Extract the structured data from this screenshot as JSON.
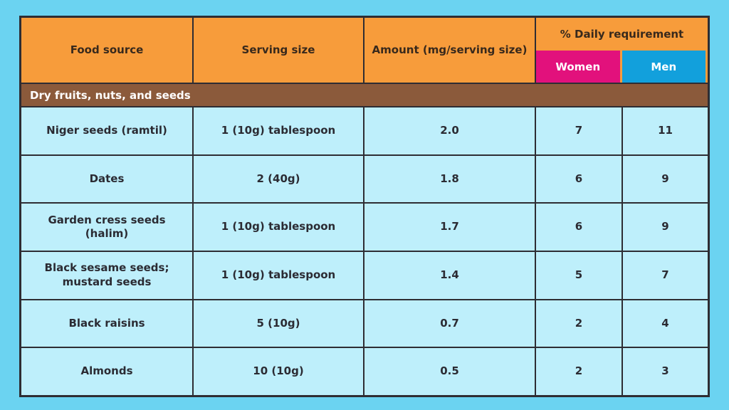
{
  "colors": {
    "page_background": "#6BD3F1",
    "header_orange": "#F79C3B",
    "women_magenta": "#E2117C",
    "men_blue": "#12A0DC",
    "section_brown": "#8B5A3B",
    "cell_light_blue": "#BEEFFB",
    "border_dark": "#2E2D33",
    "header_text": "#38291C",
    "body_text": "#2B2B33",
    "light_text": "#FFFFFF"
  },
  "table": {
    "headers": {
      "food_source": "Food source",
      "serving_size": "Serving size",
      "amount": "Amount (mg/serving size)",
      "daily_requirement": "% Daily requirement",
      "women": "Women",
      "men": "Men"
    },
    "section": "Dry fruits, nuts, and seeds",
    "rows": [
      {
        "food": "Niger seeds (ramtil)",
        "serving": "1 (10g) tablespoon",
        "amount": "2.0",
        "women": "7",
        "men": "11"
      },
      {
        "food": "Dates",
        "serving": "2 (40g)",
        "amount": "1.8",
        "women": "6",
        "men": "9"
      },
      {
        "food": "Garden cress seeds (halim)",
        "serving": "1 (10g) tablespoon",
        "amount": "1.7",
        "women": "6",
        "men": "9"
      },
      {
        "food": "Black sesame seeds; mustard seeds",
        "serving": "1 (10g) tablespoon",
        "amount": "1.4",
        "women": "5",
        "men": "7"
      },
      {
        "food": "Black raisins",
        "serving": "5 (10g)",
        "amount": "0.7",
        "women": "2",
        "men": "4"
      },
      {
        "food": "Almonds",
        "serving": "10 (10g)",
        "amount": "0.5",
        "women": "2",
        "men": "3"
      }
    ]
  },
  "chart_data": {
    "type": "table",
    "title": "",
    "columns": [
      "Food source",
      "Serving size",
      "Amount (mg/serving size)",
      "% Daily requirement - Women",
      "% Daily requirement - Men"
    ],
    "section_header": "Dry fruits, nuts, and seeds",
    "rows": [
      [
        "Niger seeds (ramtil)",
        "1 (10g) tablespoon",
        2.0,
        7,
        11
      ],
      [
        "Dates",
        "2 (40g)",
        1.8,
        6,
        9
      ],
      [
        "Garden cress seeds (halim)",
        "1 (10g) tablespoon",
        1.7,
        6,
        9
      ],
      [
        "Black sesame seeds; mustard seeds",
        "1 (10g) tablespoon",
        1.4,
        5,
        7
      ],
      [
        "Black raisins",
        "5 (10g)",
        0.7,
        2,
        4
      ],
      [
        "Almonds",
        "10 (10g)",
        0.5,
        2,
        3
      ]
    ],
    "legend_position": "none",
    "grid": true
  }
}
